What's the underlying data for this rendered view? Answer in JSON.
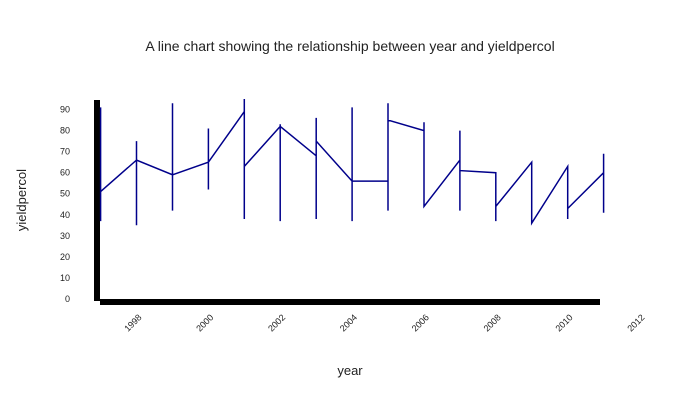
{
  "chart_data": {
    "type": "line",
    "title": "A line chart showing the relationship between year and yieldpercol",
    "xlabel": "year",
    "ylabel": "yieldpercol",
    "xlim": [
      1997.3,
      2011.3
    ],
    "ylim": [
      0,
      95
    ],
    "x_ticks": [
      1998,
      2000,
      2002,
      2004,
      2006,
      2008,
      2010,
      2012
    ],
    "y_ticks": [
      0,
      10,
      20,
      30,
      40,
      50,
      60,
      70,
      80,
      90
    ],
    "grid": false,
    "colors": {
      "line": "#00008b",
      "axis": "#000000"
    },
    "series": [
      {
        "points": [
          [
            1997.4,
            51
          ],
          [
            1997.4,
            37
          ],
          [
            1997.4,
            91
          ],
          [
            1997.4,
            51
          ],
          [
            1998.4,
            66
          ],
          [
            1998.4,
            35
          ],
          [
            1998.4,
            75
          ],
          [
            1998.4,
            66
          ],
          [
            1999.4,
            59
          ],
          [
            1999.4,
            42
          ],
          [
            1999.4,
            93
          ],
          [
            1999.4,
            59
          ],
          [
            2000.4,
            65
          ],
          [
            2000.4,
            52
          ],
          [
            2000.4,
            81
          ],
          [
            2000.4,
            65
          ],
          [
            2001.4,
            89
          ],
          [
            2001.4,
            38
          ],
          [
            2001.4,
            95
          ],
          [
            2001.4,
            63
          ],
          [
            2002.4,
            82
          ],
          [
            2002.4,
            37
          ],
          [
            2002.4,
            83
          ],
          [
            2002.4,
            82
          ],
          [
            2003.4,
            68
          ],
          [
            2003.4,
            38
          ],
          [
            2003.4,
            86
          ],
          [
            2003.4,
            75
          ],
          [
            2004.4,
            56
          ],
          [
            2004.4,
            37
          ],
          [
            2004.4,
            91
          ],
          [
            2004.4,
            56
          ],
          [
            2005.4,
            56
          ],
          [
            2005.4,
            42
          ],
          [
            2005.4,
            93
          ],
          [
            2005.4,
            85
          ],
          [
            2006.4,
            80
          ],
          [
            2006.4,
            84
          ],
          [
            2006.4,
            44
          ],
          [
            2007.4,
            66
          ],
          [
            2007.4,
            42
          ],
          [
            2007.4,
            80
          ],
          [
            2007.4,
            61
          ],
          [
            2008.4,
            60
          ],
          [
            2008.4,
            37
          ],
          [
            2008.4,
            44
          ],
          [
            2009.4,
            65
          ],
          [
            2009.4,
            36
          ],
          [
            2010.4,
            63
          ],
          [
            2010.4,
            38
          ],
          [
            2010.4,
            43
          ],
          [
            2011.4,
            60
          ],
          [
            2011.4,
            41
          ],
          [
            2011.4,
            69
          ]
        ]
      }
    ]
  }
}
